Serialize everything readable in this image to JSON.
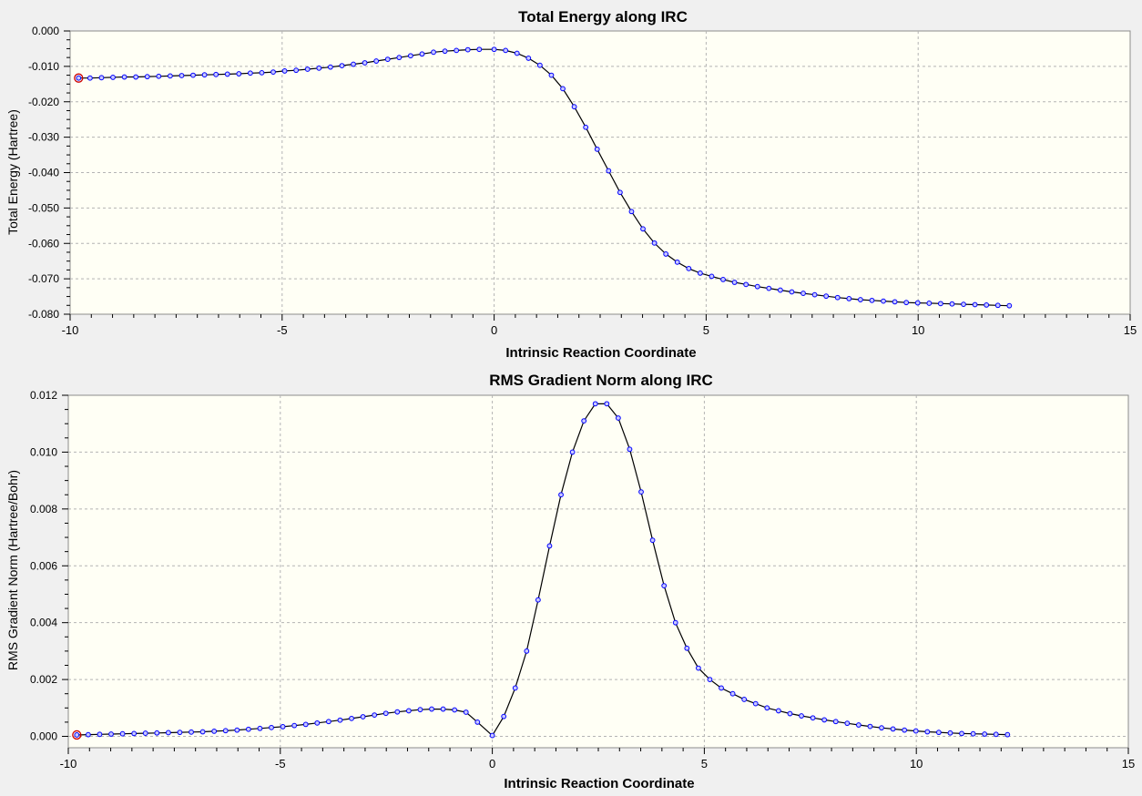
{
  "chart_data": [
    {
      "type": "line",
      "title": "Total Energy along IRC",
      "xlabel": "Intrinsic Reaction Coordinate",
      "ylabel": "Total Energy (Hartree)",
      "xlim": [
        -10,
        15
      ],
      "ylim": [
        -0.08,
        0.0
      ],
      "xticks": [
        -10,
        -5,
        0,
        5,
        10,
        15
      ],
      "xtick_labels": [
        "-10",
        "-5",
        "0",
        "5",
        "10",
        "15"
      ],
      "yticks": [
        0.0,
        -0.01,
        -0.02,
        -0.03,
        -0.04,
        -0.05,
        -0.06,
        -0.07,
        -0.08
      ],
      "ytick_labels": [
        "0.000",
        "-0.010",
        "-0.020",
        "-0.030",
        "-0.040",
        "-0.050",
        "-0.060",
        "-0.070",
        "-0.080"
      ],
      "grid": true,
      "colors": {
        "plot_bg": "#fffff5",
        "line": "#000000",
        "marker": "#0000ff",
        "highlight": "#cc0000"
      },
      "highlight_index": 0,
      "series": [
        {
          "x": [
            -9.8,
            -9.53,
            -9.26,
            -8.99,
            -8.72,
            -8.45,
            -8.18,
            -7.91,
            -7.64,
            -7.37,
            -7.1,
            -6.83,
            -6.56,
            -6.29,
            -6.02,
            -5.75,
            -5.48,
            -5.21,
            -4.94,
            -4.67,
            -4.4,
            -4.13,
            -3.86,
            -3.59,
            -3.32,
            -3.05,
            -2.78,
            -2.51,
            -2.24,
            -1.97,
            -1.7,
            -1.43,
            -1.16,
            -0.89,
            -0.62,
            -0.35,
            0.0,
            0.27,
            0.54,
            0.81,
            1.08,
            1.35,
            1.62,
            1.89,
            2.16,
            2.43,
            2.7,
            2.97,
            3.24,
            3.51,
            3.78,
            4.05,
            4.32,
            4.59,
            4.86,
            5.13,
            5.4,
            5.67,
            5.94,
            6.21,
            6.48,
            6.75,
            7.02,
            7.29,
            7.56,
            7.83,
            8.1,
            8.37,
            8.64,
            8.91,
            9.18,
            9.45,
            9.72,
            9.99,
            10.26,
            10.53,
            10.8,
            11.07,
            11.34,
            11.61,
            11.88,
            12.15
          ],
          "y": [
            -0.0133,
            -0.0133,
            -0.0132,
            -0.0131,
            -0.013,
            -0.013,
            -0.0129,
            -0.0128,
            -0.0127,
            -0.0126,
            -0.0125,
            -0.0124,
            -0.0123,
            -0.0122,
            -0.0121,
            -0.0119,
            -0.0118,
            -0.0116,
            -0.0113,
            -0.0111,
            -0.0108,
            -0.0105,
            -0.0102,
            -0.0098,
            -0.0094,
            -0.009,
            -0.0085,
            -0.008,
            -0.0075,
            -0.007,
            -0.0065,
            -0.006,
            -0.0057,
            -0.0055,
            -0.0053,
            -0.0052,
            -0.0052,
            -0.0055,
            -0.0063,
            -0.0077,
            -0.0097,
            -0.0125,
            -0.0163,
            -0.0214,
            -0.0272,
            -0.0334,
            -0.0395,
            -0.0456,
            -0.051,
            -0.0559,
            -0.0599,
            -0.063,
            -0.0653,
            -0.0671,
            -0.0684,
            -0.0693,
            -0.0702,
            -0.071,
            -0.0716,
            -0.0722,
            -0.0727,
            -0.0732,
            -0.0737,
            -0.0741,
            -0.0745,
            -0.0749,
            -0.0753,
            -0.0756,
            -0.0759,
            -0.0761,
            -0.0763,
            -0.0765,
            -0.0767,
            -0.0768,
            -0.0769,
            -0.077,
            -0.0771,
            -0.0772,
            -0.0773,
            -0.0774,
            -0.0775,
            -0.0776
          ]
        }
      ]
    },
    {
      "type": "line",
      "title": "RMS Gradient Norm along IRC",
      "xlabel": "Intrinsic Reaction Coordinate",
      "ylabel": "RMS Gradient Norm (Hartree/Bohr)",
      "xlim": [
        -10,
        15
      ],
      "ylim": [
        -0.0004,
        0.012
      ],
      "xticks": [
        -10,
        -5,
        0,
        5,
        10,
        15
      ],
      "xtick_labels": [
        "-10",
        "-5",
        "0",
        "5",
        "10",
        "15"
      ],
      "yticks": [
        0.0,
        0.002,
        0.004,
        0.006,
        0.008,
        0.01,
        0.012
      ],
      "ytick_labels": [
        "0.000",
        "0.002",
        "0.004",
        "0.006",
        "0.008",
        "0.010",
        "0.012"
      ],
      "grid": true,
      "colors": {
        "plot_bg": "#fffff5",
        "line": "#000000",
        "marker": "#0000ff",
        "highlight": "#cc0000"
      },
      "highlight_index": 0,
      "series": [
        {
          "x": [
            -9.8,
            -9.53,
            -9.26,
            -8.99,
            -8.72,
            -8.45,
            -8.18,
            -7.91,
            -7.64,
            -7.37,
            -7.1,
            -6.83,
            -6.56,
            -6.29,
            -6.02,
            -5.75,
            -5.48,
            -5.21,
            -4.94,
            -4.67,
            -4.4,
            -4.13,
            -3.86,
            -3.59,
            -3.32,
            -3.05,
            -2.78,
            -2.51,
            -2.24,
            -1.97,
            -1.7,
            -1.43,
            -1.16,
            -0.89,
            -0.62,
            -0.35,
            0.0,
            0.27,
            0.54,
            0.81,
            1.08,
            1.35,
            1.62,
            1.89,
            2.16,
            2.43,
            2.7,
            2.97,
            3.24,
            3.51,
            3.78,
            4.05,
            4.32,
            4.59,
            4.86,
            5.13,
            5.4,
            5.67,
            5.94,
            6.21,
            6.48,
            6.75,
            7.02,
            7.29,
            7.56,
            7.83,
            8.1,
            8.37,
            8.64,
            8.91,
            9.18,
            9.45,
            9.72,
            9.99,
            10.26,
            10.53,
            10.8,
            11.07,
            11.34,
            11.61,
            11.88,
            12.15
          ],
          "y": [
            5e-05,
            6e-05,
            7e-05,
            8e-05,
            9e-05,
            0.0001,
            0.00011,
            0.00012,
            0.00013,
            0.00014,
            0.00015,
            0.00016,
            0.00018,
            0.0002,
            0.00022,
            0.00025,
            0.00028,
            0.00031,
            0.00034,
            0.00038,
            0.00042,
            0.00047,
            0.00052,
            0.00057,
            0.00063,
            0.00069,
            0.00075,
            0.00081,
            0.00086,
            0.0009,
            0.00094,
            0.00096,
            0.00096,
            0.00093,
            0.00085,
            0.0005,
            3e-05,
            0.0007,
            0.0017,
            0.003,
            0.0048,
            0.0067,
            0.0085,
            0.01,
            0.0111,
            0.0117,
            0.0117,
            0.0112,
            0.0101,
            0.0086,
            0.0069,
            0.0053,
            0.004,
            0.0031,
            0.0024,
            0.002,
            0.0017,
            0.0015,
            0.0013,
            0.00115,
            0.001,
            0.0009,
            0.0008,
            0.00072,
            0.00065,
            0.00058,
            0.00052,
            0.00046,
            0.0004,
            0.00035,
            0.0003,
            0.00026,
            0.00022,
            0.00019,
            0.00016,
            0.00014,
            0.00012,
            0.0001,
            9e-05,
            8e-05,
            7e-05,
            6e-05
          ]
        }
      ]
    }
  ]
}
